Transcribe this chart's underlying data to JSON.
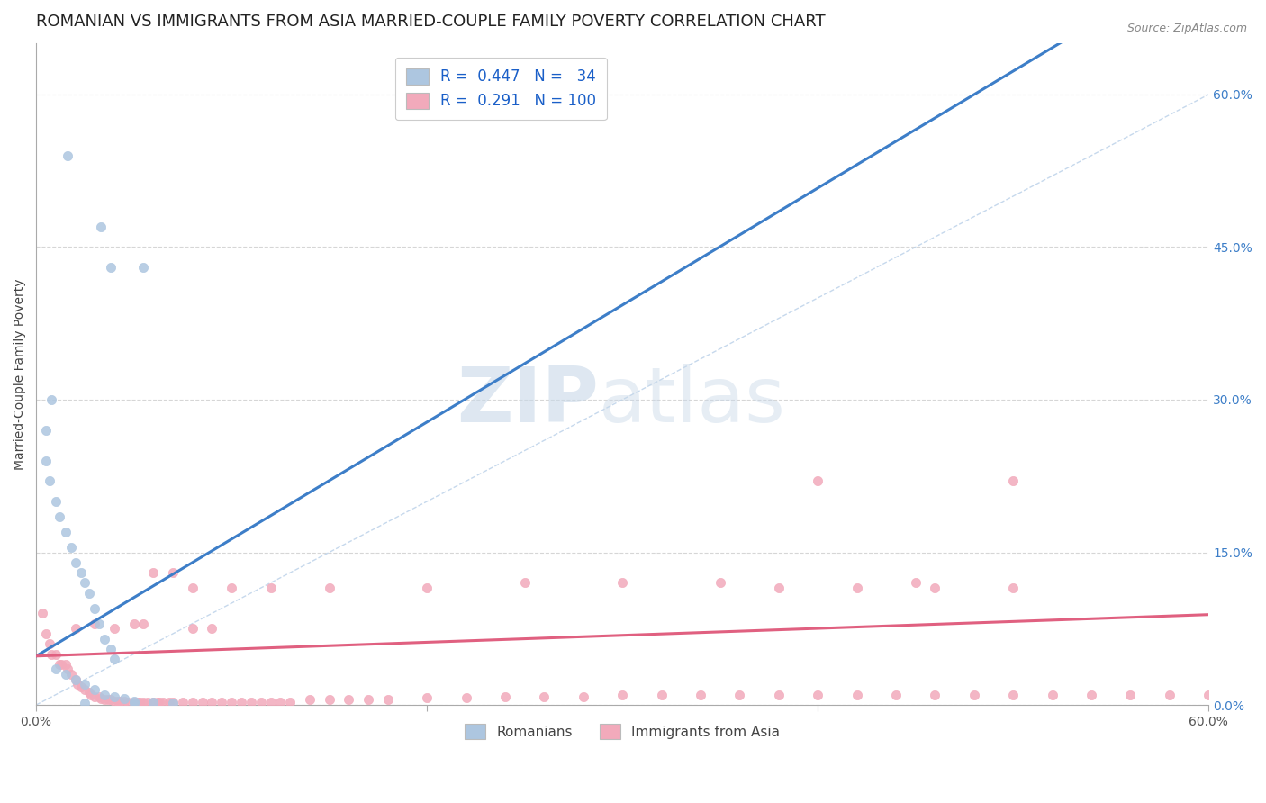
{
  "title": "ROMANIAN VS IMMIGRANTS FROM ASIA MARRIED-COUPLE FAMILY POVERTY CORRELATION CHART",
  "source": "Source: ZipAtlas.com",
  "ylabel": "Married-Couple Family Poverty",
  "legend_labels": [
    "Romanians",
    "Immigrants from Asia"
  ],
  "r_romanian": 0.447,
  "n_romanian": 34,
  "r_asian": 0.291,
  "n_asian": 100,
  "xlim": [
    0.0,
    0.6
  ],
  "ylim": [
    0.0,
    0.65
  ],
  "y_ticks_right": [
    0.0,
    0.15,
    0.3,
    0.45,
    0.6
  ],
  "y_tick_labels_right": [
    "0.0%",
    "15.0%",
    "30.0%",
    "45.0%",
    "60.0%"
  ],
  "romanian_color": "#adc6e0",
  "asian_color": "#f2aabb",
  "romanian_line_color": "#3d7ec8",
  "asian_line_color": "#e06080",
  "diagonal_color": "#b8cfe8",
  "background_color": "#ffffff",
  "grid_color": "#cccccc",
  "romanian_scatter_x": [
    0.016,
    0.033,
    0.038,
    0.055,
    0.008,
    0.005,
    0.005,
    0.007,
    0.01,
    0.012,
    0.015,
    0.018,
    0.02,
    0.023,
    0.025,
    0.027,
    0.03,
    0.032,
    0.035,
    0.038,
    0.04,
    0.01,
    0.015,
    0.02,
    0.025,
    0.03,
    0.035,
    0.04,
    0.045,
    0.05,
    0.06,
    0.05,
    0.025,
    0.07
  ],
  "romanian_scatter_y": [
    0.54,
    0.47,
    0.43,
    0.43,
    0.3,
    0.27,
    0.24,
    0.22,
    0.2,
    0.185,
    0.17,
    0.155,
    0.14,
    0.13,
    0.12,
    0.11,
    0.095,
    0.08,
    0.065,
    0.055,
    0.045,
    0.035,
    0.03,
    0.025,
    0.02,
    0.015,
    0.01,
    0.008,
    0.006,
    0.004,
    0.003,
    0.002,
    0.002,
    0.002
  ],
  "asian_scatter_x": [
    0.003,
    0.005,
    0.007,
    0.008,
    0.01,
    0.012,
    0.013,
    0.015,
    0.016,
    0.018,
    0.02,
    0.021,
    0.023,
    0.025,
    0.027,
    0.028,
    0.03,
    0.032,
    0.033,
    0.035,
    0.037,
    0.038,
    0.04,
    0.042,
    0.043,
    0.045,
    0.047,
    0.05,
    0.052,
    0.053,
    0.055,
    0.057,
    0.06,
    0.062,
    0.063,
    0.065,
    0.068,
    0.07,
    0.075,
    0.08,
    0.085,
    0.09,
    0.095,
    0.1,
    0.105,
    0.11,
    0.115,
    0.12,
    0.125,
    0.13,
    0.14,
    0.15,
    0.16,
    0.17,
    0.18,
    0.2,
    0.22,
    0.24,
    0.26,
    0.28,
    0.3,
    0.32,
    0.34,
    0.36,
    0.38,
    0.4,
    0.42,
    0.44,
    0.46,
    0.48,
    0.5,
    0.52,
    0.54,
    0.56,
    0.58,
    0.6,
    0.4,
    0.5,
    0.25,
    0.3,
    0.35,
    0.45,
    0.38,
    0.42,
    0.46,
    0.5,
    0.15,
    0.2,
    0.08,
    0.1,
    0.12,
    0.06,
    0.07,
    0.08,
    0.09,
    0.05,
    0.055,
    0.03,
    0.04,
    0.02
  ],
  "asian_scatter_y": [
    0.09,
    0.07,
    0.06,
    0.05,
    0.05,
    0.04,
    0.04,
    0.04,
    0.035,
    0.03,
    0.025,
    0.02,
    0.018,
    0.015,
    0.012,
    0.01,
    0.008,
    0.008,
    0.006,
    0.005,
    0.005,
    0.005,
    0.004,
    0.004,
    0.004,
    0.004,
    0.003,
    0.003,
    0.003,
    0.003,
    0.003,
    0.003,
    0.003,
    0.003,
    0.003,
    0.003,
    0.003,
    0.003,
    0.003,
    0.003,
    0.003,
    0.003,
    0.003,
    0.003,
    0.003,
    0.003,
    0.003,
    0.003,
    0.003,
    0.003,
    0.005,
    0.005,
    0.005,
    0.005,
    0.005,
    0.007,
    0.007,
    0.008,
    0.008,
    0.008,
    0.01,
    0.01,
    0.01,
    0.01,
    0.01,
    0.01,
    0.01,
    0.01,
    0.01,
    0.01,
    0.01,
    0.01,
    0.01,
    0.01,
    0.01,
    0.01,
    0.22,
    0.22,
    0.12,
    0.12,
    0.12,
    0.12,
    0.115,
    0.115,
    0.115,
    0.115,
    0.115,
    0.115,
    0.115,
    0.115,
    0.115,
    0.13,
    0.13,
    0.075,
    0.075,
    0.08,
    0.08,
    0.08,
    0.075,
    0.075
  ],
  "watermark_zip": "ZIP",
  "watermark_atlas": "atlas",
  "title_fontsize": 13,
  "label_fontsize": 10,
  "tick_fontsize": 10,
  "legend_fontsize": 11
}
